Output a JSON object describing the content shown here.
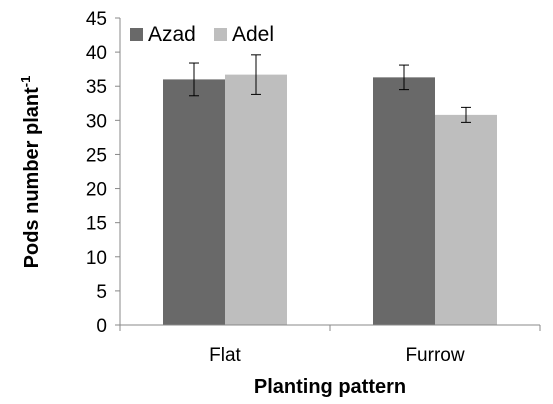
{
  "chart_data": {
    "type": "bar",
    "categories": [
      "Flat",
      "Furrow"
    ],
    "series": [
      {
        "name": "Azad",
        "color": "#696969",
        "values": [
          36.0,
          36.3
        ],
        "errors": [
          2.4,
          1.8
        ]
      },
      {
        "name": "Adel",
        "color": "#bebebe",
        "values": [
          36.7,
          30.8
        ],
        "errors": [
          2.9,
          1.1
        ]
      }
    ],
    "xlabel": "Planting pattern",
    "ylabel": "Pods number plant",
    "ylabel_superscript": "-1",
    "ylim": [
      0,
      45
    ],
    "yticks": [
      0,
      5,
      10,
      15,
      20,
      25,
      30,
      35,
      40,
      45
    ],
    "grid": false,
    "legend_position": "top-left"
  }
}
